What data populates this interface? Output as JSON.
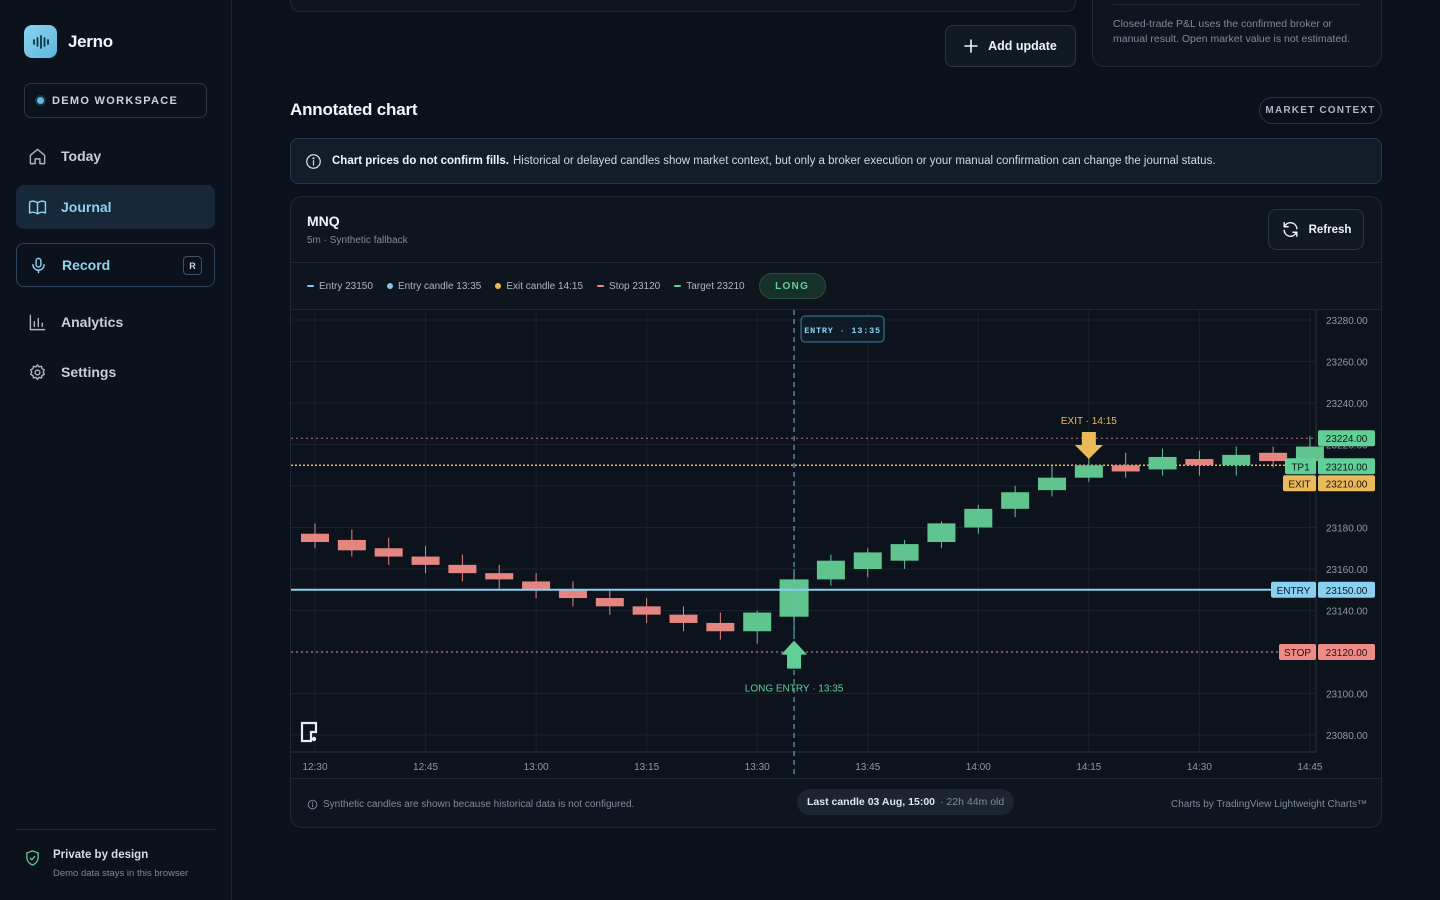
{
  "app": {
    "name": "Jerno",
    "workspace": "DEMO WORKSPACE"
  },
  "nav": [
    {
      "label": "Today",
      "icon": "home-icon"
    },
    {
      "label": "Journal",
      "icon": "book-icon"
    },
    {
      "label": "Record",
      "icon": "mic-icon",
      "shortcut": "R"
    },
    {
      "label": "Analytics",
      "icon": "bar-chart-icon"
    },
    {
      "label": "Settings",
      "icon": "gear-icon"
    }
  ],
  "footer": {
    "title": "Private by design",
    "subtitle": "Demo data stays in this browser"
  },
  "top": {
    "add_update": "Add update",
    "pnl_note": "Closed-trade P&L uses the confirmed broker or manual result. Open market value is not estimated."
  },
  "section": {
    "title": "Annotated chart",
    "badge": "MARKET CONTEXT"
  },
  "notice": {
    "bold": "Chart prices do not confirm fills.",
    "text": "Historical or delayed candles show market context, but only a broker execution or your manual confirmation can change the journal status."
  },
  "chart_card": {
    "symbol": "MNQ",
    "subtitle": "5m · Synthetic fallback",
    "refresh": "Refresh",
    "legend": [
      {
        "label": "Entry 23150",
        "kind": "dash",
        "color": "#7cc7ea"
      },
      {
        "label": "Entry candle 13:35",
        "kind": "dot",
        "color": "#7cc7ea"
      },
      {
        "label": "Exit candle 14:15",
        "kind": "dot",
        "color": "#e9b95a"
      },
      {
        "label": "Stop 23120",
        "kind": "dash",
        "color": "#ef8b87"
      },
      {
        "label": "Target 23210",
        "kind": "dash",
        "color": "#62cf98"
      }
    ],
    "direction": "LONG",
    "footer_left": "Synthetic candles are shown because historical data is not configured.",
    "footer_mid_bold": "Last candle 03 Aug, 15:00",
    "footer_mid_sub": "· 22h 44m old",
    "footer_right": "Charts by TradingView Lightweight Charts™"
  },
  "chart_data": {
    "type": "candlestick",
    "interval": "5m",
    "ylim": [
      23072,
      23285
    ],
    "y_ticks": [
      "23280.00",
      "23260.00",
      "23240.00",
      "23220.00",
      "23180.00",
      "23160.00",
      "23140.00",
      "23100.00",
      "23080.00"
    ],
    "x_ticks": [
      "12:30",
      "12:45",
      "13:00",
      "13:15",
      "13:30",
      "13:45",
      "14:00",
      "14:15",
      "14:30",
      "14:45"
    ],
    "candles": [
      {
        "t": "12:30",
        "o": 23177,
        "h": 23182,
        "l": 23170,
        "c": 23173
      },
      {
        "t": "12:35",
        "o": 23174,
        "h": 23179,
        "l": 23166,
        "c": 23169
      },
      {
        "t": "12:40",
        "o": 23170,
        "h": 23175,
        "l": 23162,
        "c": 23166
      },
      {
        "t": "12:45",
        "o": 23166,
        "h": 23171,
        "l": 23158,
        "c": 23162
      },
      {
        "t": "12:50",
        "o": 23162,
        "h": 23167,
        "l": 23154,
        "c": 23158
      },
      {
        "t": "12:55",
        "o": 23158,
        "h": 23162,
        "l": 23150,
        "c": 23155
      },
      {
        "t": "13:00",
        "o": 23154,
        "h": 23158,
        "l": 23146,
        "c": 23150
      },
      {
        "t": "13:05",
        "o": 23150,
        "h": 23154,
        "l": 23142,
        "c": 23146
      },
      {
        "t": "13:10",
        "o": 23146,
        "h": 23150,
        "l": 23138,
        "c": 23142
      },
      {
        "t": "13:15",
        "o": 23142,
        "h": 23146,
        "l": 23134,
        "c": 23138
      },
      {
        "t": "13:20",
        "o": 23138,
        "h": 23142,
        "l": 23130,
        "c": 23134
      },
      {
        "t": "13:25",
        "o": 23134,
        "h": 23139,
        "l": 23126,
        "c": 23130
      },
      {
        "t": "13:30",
        "o": 23130,
        "h": 23140,
        "l": 23124,
        "c": 23139
      },
      {
        "t": "13:35",
        "o": 23137,
        "h": 23160,
        "l": 23128,
        "c": 23155
      },
      {
        "t": "13:40",
        "o": 23155,
        "h": 23167,
        "l": 23152,
        "c": 23164
      },
      {
        "t": "13:45",
        "o": 23160,
        "h": 23170,
        "l": 23156,
        "c": 23168
      },
      {
        "t": "13:50",
        "o": 23164,
        "h": 23174,
        "l": 23160,
        "c": 23172
      },
      {
        "t": "13:55",
        "o": 23173,
        "h": 23183,
        "l": 23170,
        "c": 23182
      },
      {
        "t": "14:00",
        "o": 23180,
        "h": 23191,
        "l": 23177,
        "c": 23189
      },
      {
        "t": "14:05",
        "o": 23189,
        "h": 23200,
        "l": 23185,
        "c": 23197
      },
      {
        "t": "14:10",
        "o": 23198,
        "h": 23210,
        "l": 23195,
        "c": 23204
      },
      {
        "t": "14:15",
        "o": 23204,
        "h": 23214,
        "l": 23202,
        "c": 23210
      },
      {
        "t": "14:20",
        "o": 23210,
        "h": 23216,
        "l": 23204,
        "c": 23207
      },
      {
        "t": "14:25",
        "o": 23208,
        "h": 23218,
        "l": 23205,
        "c": 23214
      },
      {
        "t": "14:30",
        "o": 23213,
        "h": 23217,
        "l": 23205,
        "c": 23210
      },
      {
        "t": "14:35",
        "o": 23210,
        "h": 23219,
        "l": 23205,
        "c": 23215
      },
      {
        "t": "14:40",
        "o": 23216,
        "h": 23219,
        "l": 23209,
        "c": 23212
      },
      {
        "t": "14:45",
        "o": 23212,
        "h": 23224,
        "l": 23209,
        "c": 23219
      }
    ],
    "levels": [
      {
        "name": "ENTRY",
        "value": 23150,
        "label": "23150.00",
        "color": "#7cc7ea"
      },
      {
        "name": "STOP",
        "value": 23120,
        "label": "23120.00",
        "color": "#ef8b87"
      },
      {
        "name": "TP1",
        "value": 23210,
        "label": "23210.00",
        "color": "#62cf98"
      },
      {
        "name": "EXIT",
        "value": 23210,
        "label": "23210.00",
        "color": "#e9b95a"
      },
      {
        "name": "",
        "value": 23224,
        "label": "23224.00",
        "color": "#62cf98"
      }
    ],
    "markers": [
      {
        "label": "ENTRY · 13:35",
        "t": "13:35"
      },
      {
        "label": "LONG ENTRY · 13:35",
        "t": "13:35"
      },
      {
        "label": "EXIT · 14:15",
        "t": "14:15"
      }
    ],
    "colors": {
      "up": "#5fc48e",
      "down": "#e58581"
    }
  }
}
